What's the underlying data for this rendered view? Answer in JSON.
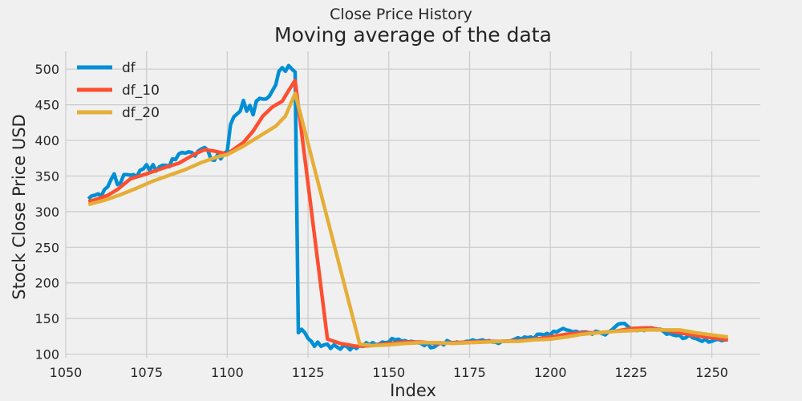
{
  "chart_data": {
    "type": "line",
    "suptitle": "Close Price History",
    "title": "Moving average of the data",
    "xlabel": "Index",
    "ylabel": "Stock Close Price USD",
    "xlim": [
      1050,
      1265
    ],
    "ylim": [
      95,
      525
    ],
    "x_ticks": [
      1050,
      1075,
      1100,
      1125,
      1150,
      1175,
      1200,
      1225,
      1250
    ],
    "y_ticks": [
      100,
      150,
      200,
      250,
      300,
      350,
      400,
      450,
      500
    ],
    "grid": true,
    "legend_position": "top-left",
    "series": [
      {
        "name": "df",
        "color": "#008fd5",
        "points": [
          [
            1057,
            318
          ],
          [
            1058,
            322
          ],
          [
            1059,
            323
          ],
          [
            1060,
            325
          ],
          [
            1061,
            322
          ],
          [
            1062,
            331
          ],
          [
            1063,
            335
          ],
          [
            1064,
            345
          ],
          [
            1065,
            353
          ],
          [
            1066,
            338
          ],
          [
            1067,
            341
          ],
          [
            1068,
            352
          ],
          [
            1069,
            352
          ],
          [
            1070,
            351
          ],
          [
            1071,
            352
          ],
          [
            1072,
            349
          ],
          [
            1073,
            358
          ],
          [
            1074,
            360
          ],
          [
            1075,
            366
          ],
          [
            1076,
            358
          ],
          [
            1077,
            366
          ],
          [
            1078,
            357
          ],
          [
            1079,
            363
          ],
          [
            1080,
            365
          ],
          [
            1081,
            365
          ],
          [
            1082,
            363
          ],
          [
            1083,
            374
          ],
          [
            1084,
            373
          ],
          [
            1085,
            381
          ],
          [
            1086,
            383
          ],
          [
            1087,
            382
          ],
          [
            1088,
            384
          ],
          [
            1089,
            383
          ],
          [
            1090,
            378
          ],
          [
            1091,
            385
          ],
          [
            1092,
            388
          ],
          [
            1093,
            390
          ],
          [
            1094,
            386
          ],
          [
            1095,
            373
          ],
          [
            1096,
            372
          ],
          [
            1097,
            380
          ],
          [
            1098,
            374
          ],
          [
            1099,
            382
          ],
          [
            1100,
            385
          ],
          [
            1101,
            422
          ],
          [
            1102,
            433
          ],
          [
            1103,
            437
          ],
          [
            1104,
            441
          ],
          [
            1105,
            456
          ],
          [
            1106,
            441
          ],
          [
            1107,
            449
          ],
          [
            1108,
            436
          ],
          [
            1109,
            455
          ],
          [
            1110,
            459
          ],
          [
            1111,
            458
          ],
          [
            1112,
            458
          ],
          [
            1113,
            462
          ],
          [
            1114,
            470
          ],
          [
            1115,
            478
          ],
          [
            1116,
            497
          ],
          [
            1117,
            502
          ],
          [
            1118,
            497
          ],
          [
            1119,
            505
          ],
          [
            1120,
            500
          ],
          [
            1121,
            496
          ],
          [
            1122,
            130
          ],
          [
            1123,
            135
          ],
          [
            1124,
            130
          ],
          [
            1125,
            122
          ],
          [
            1126,
            118
          ],
          [
            1127,
            111
          ],
          [
            1128,
            117
          ],
          [
            1129,
            111
          ],
          [
            1130,
            113
          ],
          [
            1131,
            114
          ],
          [
            1132,
            108
          ],
          [
            1133,
            113
          ],
          [
            1134,
            110
          ],
          [
            1135,
            107
          ],
          [
            1136,
            112
          ],
          [
            1137,
            111
          ],
          [
            1138,
            106
          ],
          [
            1139,
            111
          ],
          [
            1140,
            108
          ],
          [
            1141,
            113
          ],
          [
            1142,
            111
          ],
          [
            1143,
            116
          ],
          [
            1144,
            113
          ],
          [
            1145,
            116
          ],
          [
            1146,
            113
          ],
          [
            1147,
            114
          ],
          [
            1148,
            117
          ],
          [
            1149,
            116
          ],
          [
            1150,
            117
          ],
          [
            1151,
            122
          ],
          [
            1152,
            120
          ],
          [
            1153,
            121
          ],
          [
            1154,
            118
          ],
          [
            1155,
            119
          ],
          [
            1156,
            117
          ],
          [
            1157,
            118
          ],
          [
            1158,
            117
          ],
          [
            1159,
            116
          ],
          [
            1160,
            115
          ],
          [
            1161,
            112
          ],
          [
            1162,
            116
          ],
          [
            1163,
            109
          ],
          [
            1164,
            110
          ],
          [
            1165,
            113
          ],
          [
            1166,
            116
          ],
          [
            1167,
            113
          ],
          [
            1168,
            119
          ],
          [
            1169,
            117
          ],
          [
            1170,
            115
          ],
          [
            1171,
            117
          ],
          [
            1172,
            116
          ],
          [
            1173,
            116
          ],
          [
            1174,
            118
          ],
          [
            1175,
            118
          ],
          [
            1176,
            120
          ],
          [
            1177,
            118
          ],
          [
            1178,
            119
          ],
          [
            1179,
            120
          ],
          [
            1180,
            118
          ],
          [
            1181,
            119
          ],
          [
            1182,
            117
          ],
          [
            1183,
            117
          ],
          [
            1184,
            115
          ],
          [
            1185,
            118
          ],
          [
            1186,
            118
          ],
          [
            1187,
            118
          ],
          [
            1188,
            119
          ],
          [
            1189,
            121
          ],
          [
            1190,
            123
          ],
          [
            1191,
            121
          ],
          [
            1192,
            124
          ],
          [
            1193,
            123
          ],
          [
            1194,
            124
          ],
          [
            1195,
            122
          ],
          [
            1196,
            128
          ],
          [
            1197,
            128
          ],
          [
            1198,
            127
          ],
          [
            1199,
            129
          ],
          [
            1200,
            127
          ],
          [
            1201,
            132
          ],
          [
            1202,
            131
          ],
          [
            1203,
            134
          ],
          [
            1204,
            136
          ],
          [
            1205,
            134
          ],
          [
            1206,
            133
          ],
          [
            1207,
            131
          ],
          [
            1208,
            132
          ],
          [
            1209,
            130
          ],
          [
            1210,
            131
          ],
          [
            1211,
            131
          ],
          [
            1212,
            130
          ],
          [
            1213,
            128
          ],
          [
            1214,
            132
          ],
          [
            1215,
            131
          ],
          [
            1216,
            129
          ],
          [
            1217,
            127
          ],
          [
            1218,
            131
          ],
          [
            1219,
            134
          ],
          [
            1220,
            138
          ],
          [
            1221,
            142
          ],
          [
            1222,
            143
          ],
          [
            1223,
            143
          ],
          [
            1224,
            139
          ],
          [
            1225,
            135
          ],
          [
            1226,
            134
          ],
          [
            1227,
            133
          ],
          [
            1228,
            135
          ],
          [
            1229,
            133
          ],
          [
            1230,
            136
          ],
          [
            1231,
            137
          ],
          [
            1232,
            136
          ],
          [
            1233,
            134
          ],
          [
            1234,
            135
          ],
          [
            1235,
            132
          ],
          [
            1236,
            128
          ],
          [
            1237,
            129
          ],
          [
            1238,
            127
          ],
          [
            1239,
            126
          ],
          [
            1240,
            127
          ],
          [
            1241,
            122
          ],
          [
            1242,
            123
          ],
          [
            1243,
            127
          ],
          [
            1244,
            123
          ],
          [
            1245,
            122
          ],
          [
            1246,
            120
          ],
          [
            1247,
            118
          ],
          [
            1248,
            121
          ],
          [
            1249,
            117
          ],
          [
            1250,
            118
          ],
          [
            1251,
            120
          ],
          [
            1252,
            121
          ],
          [
            1253,
            119
          ],
          [
            1254,
            120
          ],
          [
            1255,
            120
          ]
        ]
      },
      {
        "name": "df_10",
        "color": "#fc4f30",
        "points": [
          [
            1057,
            314
          ],
          [
            1060,
            318
          ],
          [
            1063,
            323
          ],
          [
            1066,
            331
          ],
          [
            1070,
            346
          ],
          [
            1075,
            353
          ],
          [
            1080,
            361
          ],
          [
            1085,
            368
          ],
          [
            1090,
            381
          ],
          [
            1093,
            387
          ],
          [
            1096,
            385
          ],
          [
            1100,
            381
          ],
          [
            1105,
            397
          ],
          [
            1108,
            413
          ],
          [
            1111,
            434
          ],
          [
            1114,
            447
          ],
          [
            1117,
            455
          ],
          [
            1119,
            470
          ],
          [
            1121,
            484
          ],
          [
            1131,
            121
          ],
          [
            1135,
            115
          ],
          [
            1140,
            111
          ],
          [
            1145,
            112
          ],
          [
            1150,
            115
          ],
          [
            1155,
            117
          ],
          [
            1160,
            117
          ],
          [
            1165,
            115
          ],
          [
            1170,
            116
          ],
          [
            1175,
            117
          ],
          [
            1180,
            118
          ],
          [
            1185,
            118
          ],
          [
            1190,
            119
          ],
          [
            1195,
            121
          ],
          [
            1200,
            124
          ],
          [
            1205,
            128
          ],
          [
            1210,
            130
          ],
          [
            1215,
            130
          ],
          [
            1220,
            132
          ],
          [
            1225,
            136
          ],
          [
            1230,
            137
          ],
          [
            1235,
            134
          ],
          [
            1240,
            130
          ],
          [
            1245,
            126
          ],
          [
            1250,
            123
          ],
          [
            1255,
            120
          ]
        ]
      },
      {
        "name": "df_20",
        "color": "#e5ae38",
        "points": [
          [
            1057,
            310
          ],
          [
            1062,
            316
          ],
          [
            1067,
            324
          ],
          [
            1072,
            333
          ],
          [
            1077,
            343
          ],
          [
            1082,
            351
          ],
          [
            1087,
            359
          ],
          [
            1092,
            369
          ],
          [
            1097,
            377
          ],
          [
            1100,
            380
          ],
          [
            1105,
            392
          ],
          [
            1110,
            406
          ],
          [
            1115,
            420
          ],
          [
            1118,
            434
          ],
          [
            1121,
            466
          ],
          [
            1141,
            114
          ],
          [
            1145,
            112
          ],
          [
            1150,
            113
          ],
          [
            1155,
            115
          ],
          [
            1160,
            116
          ],
          [
            1165,
            116
          ],
          [
            1170,
            115
          ],
          [
            1175,
            116
          ],
          [
            1180,
            117
          ],
          [
            1185,
            118
          ],
          [
            1190,
            118
          ],
          [
            1195,
            120
          ],
          [
            1200,
            121
          ],
          [
            1205,
            124
          ],
          [
            1210,
            128
          ],
          [
            1215,
            130
          ],
          [
            1220,
            132
          ],
          [
            1225,
            133
          ],
          [
            1230,
            134
          ],
          [
            1235,
            134
          ],
          [
            1240,
            134
          ],
          [
            1245,
            130
          ],
          [
            1250,
            127
          ],
          [
            1255,
            124
          ]
        ]
      }
    ]
  }
}
